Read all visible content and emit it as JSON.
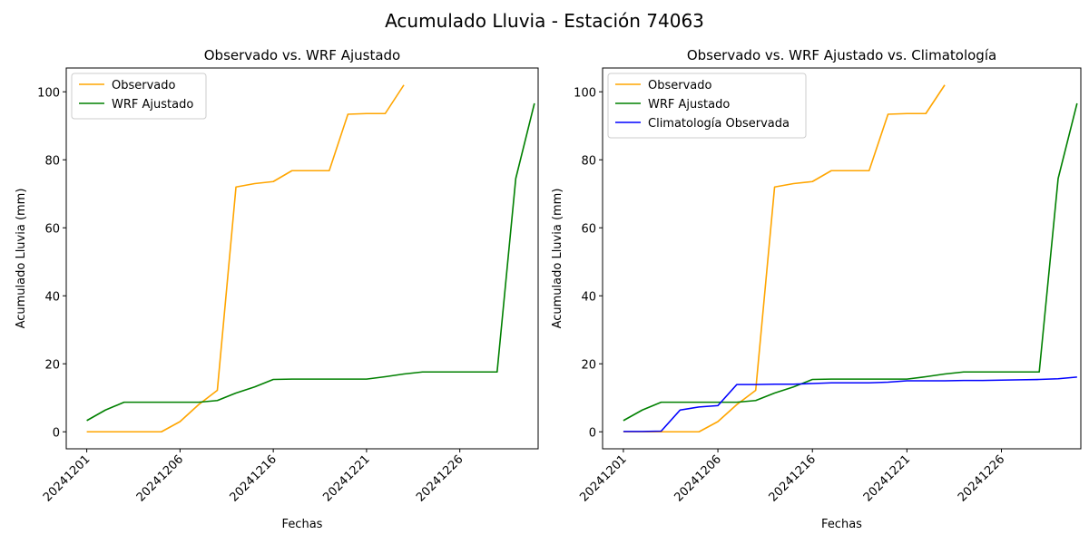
{
  "figure": {
    "suptitle": "Acumulado Lluvia - Estación 74063"
  },
  "colors": {
    "observado": "#ffa500",
    "wrf": "#008000",
    "climatologia": "#0000ff"
  },
  "chart_data": [
    {
      "type": "line",
      "title": "Observado vs. WRF Ajustado",
      "xlabel": "Fechas",
      "ylabel": "Acumulado Lluvia (mm)",
      "xtick_labels": [
        "20241201",
        "20241206",
        "20241216",
        "20241221",
        "20241226"
      ],
      "ytick_labels": [
        "0",
        "20",
        "40",
        "60",
        "80",
        "100"
      ],
      "yticks": [
        0,
        20,
        40,
        60,
        80,
        100
      ],
      "ylim": [
        -5,
        107
      ],
      "legend_position": "upper left",
      "grid": false,
      "series": [
        {
          "name": "Observado",
          "color": "#ffa500",
          "values": [
            0,
            0,
            0,
            0,
            0,
            3,
            8,
            12.2,
            72,
            73,
            73.6,
            76.8,
            76.8,
            76.8,
            93.4,
            93.6,
            93.6,
            102
          ]
        },
        {
          "name": "WRF Ajustado",
          "color": "#008000",
          "values": [
            3.3,
            6.4,
            8.7,
            8.7,
            8.7,
            8.7,
            8.7,
            9.2,
            11.4,
            13.2,
            15.4,
            15.5,
            15.5,
            15.5,
            15.5,
            15.5,
            16.2,
            17,
            17.6,
            17.6,
            17.6,
            17.6,
            17.6,
            74.5,
            96.6
          ]
        }
      ]
    },
    {
      "type": "line",
      "title": "Observado vs. WRF Ajustado vs. Climatología",
      "xlabel": "Fechas",
      "ylabel": "Acumulado Lluvia (mm)",
      "xtick_labels": [
        "20241201",
        "20241206",
        "20241216",
        "20241221",
        "20241226"
      ],
      "ytick_labels": [
        "0",
        "20",
        "40",
        "60",
        "80",
        "100"
      ],
      "yticks": [
        0,
        20,
        40,
        60,
        80,
        100
      ],
      "ylim": [
        -5,
        107
      ],
      "legend_position": "upper left",
      "grid": false,
      "series": [
        {
          "name": "Observado",
          "color": "#ffa500",
          "values": [
            0,
            0,
            0,
            0,
            0,
            3,
            8,
            12.2,
            72,
            73,
            73.6,
            76.8,
            76.8,
            76.8,
            93.4,
            93.6,
            93.6,
            102
          ]
        },
        {
          "name": "WRF Ajustado",
          "color": "#008000",
          "values": [
            3.3,
            6.4,
            8.7,
            8.7,
            8.7,
            8.7,
            8.7,
            9.2,
            11.4,
            13.2,
            15.4,
            15.5,
            15.5,
            15.5,
            15.5,
            15.5,
            16.2,
            17,
            17.6,
            17.6,
            17.6,
            17.6,
            17.6,
            74.5,
            96.6
          ]
        },
        {
          "name": "Climatología Observada",
          "color": "#0000ff",
          "values": [
            0.1,
            0.1,
            0.2,
            6.4,
            7.3,
            7.7,
            13.9,
            13.9,
            14,
            14,
            14.2,
            14.4,
            14.4,
            14.4,
            14.6,
            15,
            15,
            15,
            15.1,
            15.1,
            15.2,
            15.3,
            15.4,
            15.6,
            16.1
          ]
        }
      ]
    }
  ]
}
